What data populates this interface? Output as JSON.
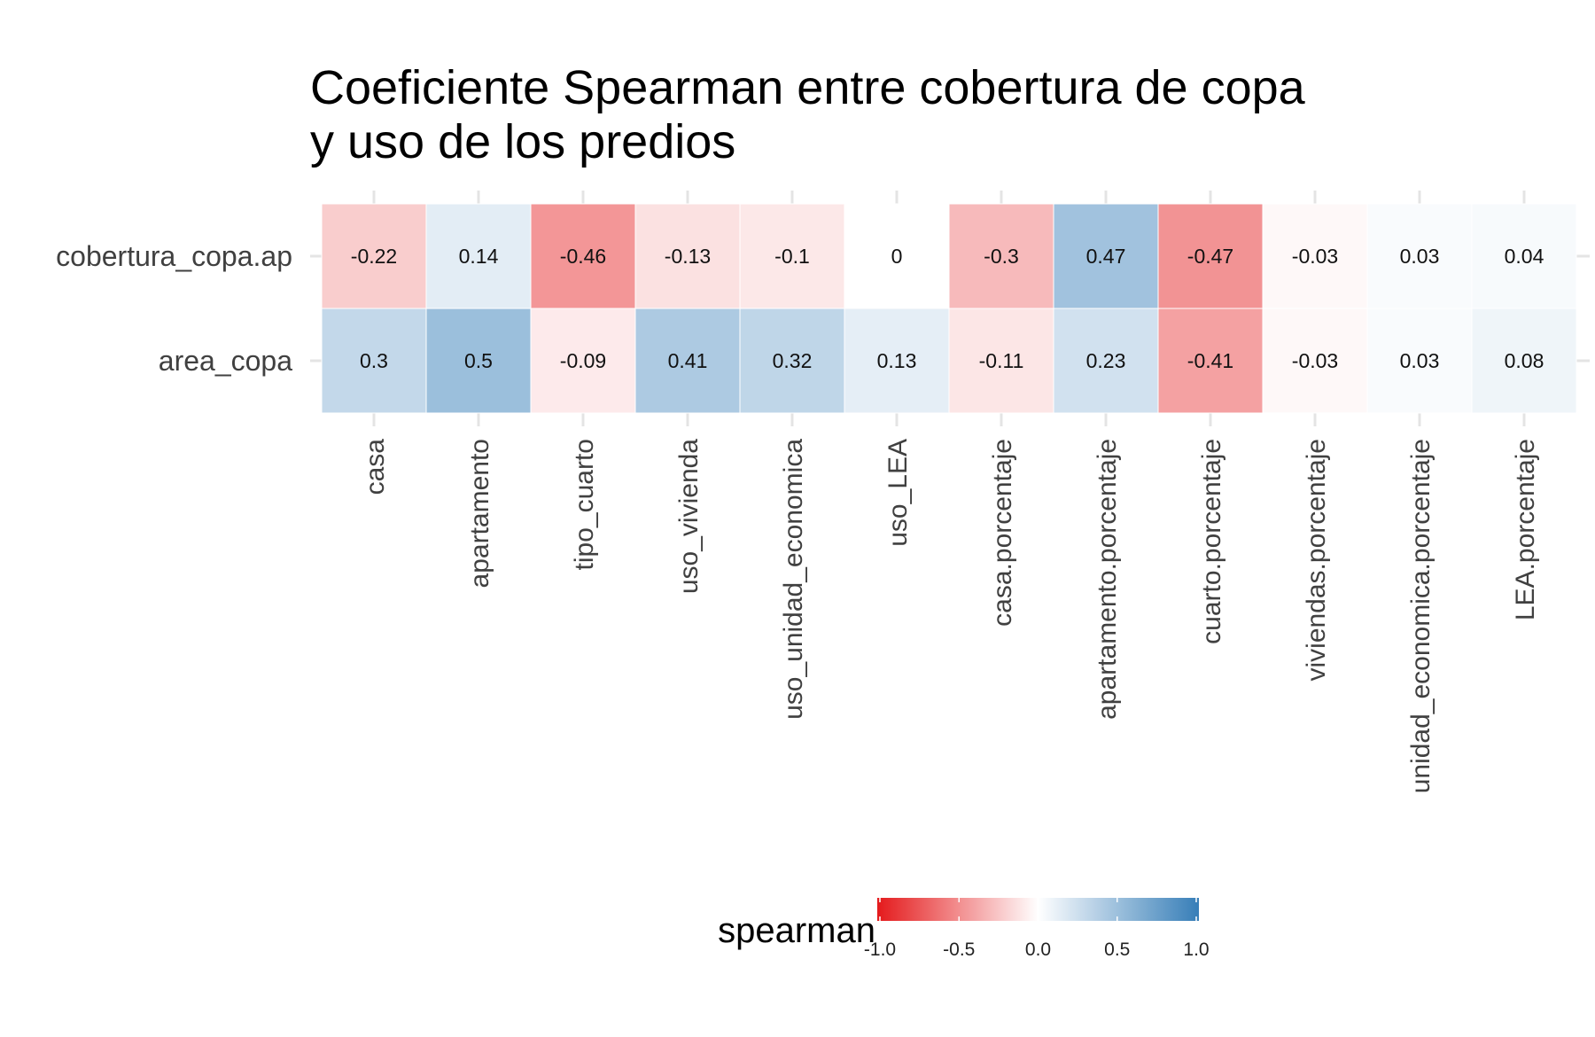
{
  "chart_data": {
    "type": "heatmap",
    "title_lines": [
      "Coeficiente Spearman entre  cobertura de copa",
      "y uso de los predios"
    ],
    "rows": [
      "cobertura_copa.ap",
      "area_copa"
    ],
    "columns": [
      "casa",
      "apartamento",
      "tipo_cuarto",
      "uso_vivienda",
      "uso_unidad_economica",
      "uso_LEA",
      "casa.porcentaje",
      "apartamento.porcentaje",
      "cuarto.porcentaje",
      "viviendas.porcentaje",
      "unidad_economica.porcentaje",
      "LEA.porcentaje"
    ],
    "values": [
      [
        -0.22,
        0.14,
        -0.46,
        -0.13,
        -0.1,
        0,
        -0.3,
        0.47,
        -0.47,
        -0.03,
        0.03,
        0.04
      ],
      [
        0.3,
        0.5,
        -0.09,
        0.41,
        0.32,
        0.13,
        -0.11,
        0.23,
        -0.41,
        -0.03,
        0.03,
        0.08
      ]
    ],
    "labels": [
      [
        "-0.22",
        "0.14",
        "-0.46",
        "-0.13",
        "-0.1",
        "0",
        "-0.3",
        "0.47",
        "-0.47",
        "-0.03",
        "0.03",
        "0.04"
      ],
      [
        "0.3",
        "0.5",
        "-0.09",
        "0.41",
        "0.32",
        "0.13",
        "-0.11",
        "0.23",
        "-0.41",
        "-0.03",
        "0.03",
        "0.08"
      ]
    ],
    "legend": {
      "title": "spearman",
      "range": [
        -1.0,
        1.0
      ],
      "ticks": [
        -1.0,
        -0.5,
        0.0,
        0.5,
        1.0
      ],
      "tick_labels": [
        "-1.0",
        "-0.5",
        "0.0",
        "0.5",
        "1.0"
      ],
      "placement": "bottom"
    },
    "colors": {
      "low": "#E41A1C",
      "mid": "#FFFFFF",
      "high": "#377EB8"
    },
    "grid": true
  }
}
